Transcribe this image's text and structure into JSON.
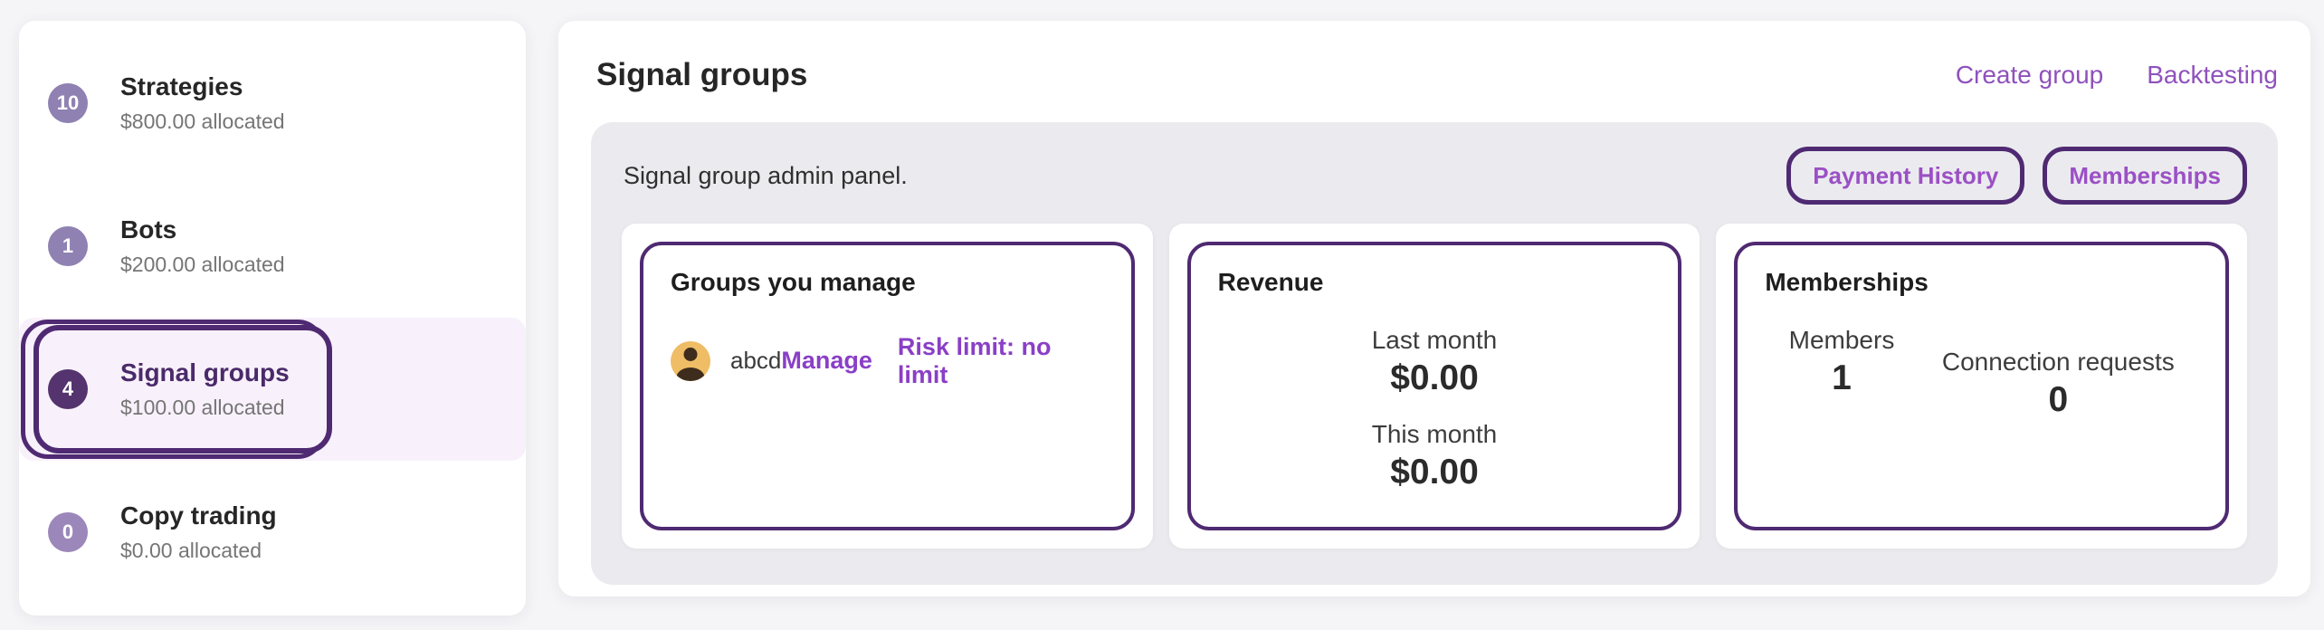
{
  "colors": {
    "accent_link": "#8f52bc",
    "accent_link_bold": "#8a3fc6",
    "border_purple": "#4f2a72",
    "badge_default": "#8f81b2",
    "badge_selected": "#54336e",
    "badge_muted": "#9c87ba",
    "selected_row_bg": "#f8f1fb",
    "panel_bg": "#ebebef",
    "avatar_bg": "#efbd66"
  },
  "sidebar": {
    "items": [
      {
        "badge": "10",
        "label": "Strategies",
        "sub": "$800.00 allocated"
      },
      {
        "badge": "1",
        "label": "Bots",
        "sub": "$200.00 allocated"
      },
      {
        "badge": "4",
        "label": "Signal groups",
        "sub": "$100.00 allocated",
        "selected": true
      },
      {
        "badge": "0",
        "label": "Copy trading",
        "sub": "$0.00 allocated"
      }
    ]
  },
  "main": {
    "title": "Signal groups",
    "actions": [
      {
        "label": "Create group"
      },
      {
        "label": "Backtesting"
      }
    ]
  },
  "admin_panel": {
    "note": "Signal group admin panel.",
    "buttons": [
      {
        "label": "Payment History"
      },
      {
        "label": "Memberships"
      }
    ]
  },
  "cards": {
    "groups": {
      "title": "Groups you manage",
      "group": {
        "name": "abcd",
        "manage_label": "Manage",
        "risk_label": "Risk limit: no limit"
      }
    },
    "revenue": {
      "title": "Revenue",
      "stats": [
        {
          "label": "Last month",
          "value": "$0.00"
        },
        {
          "label": "This month",
          "value": "$0.00"
        }
      ]
    },
    "memberships": {
      "title": "Memberships",
      "stats": [
        {
          "label": "Members",
          "value": "1"
        },
        {
          "label": "Connection requests",
          "value": "0"
        }
      ]
    }
  }
}
